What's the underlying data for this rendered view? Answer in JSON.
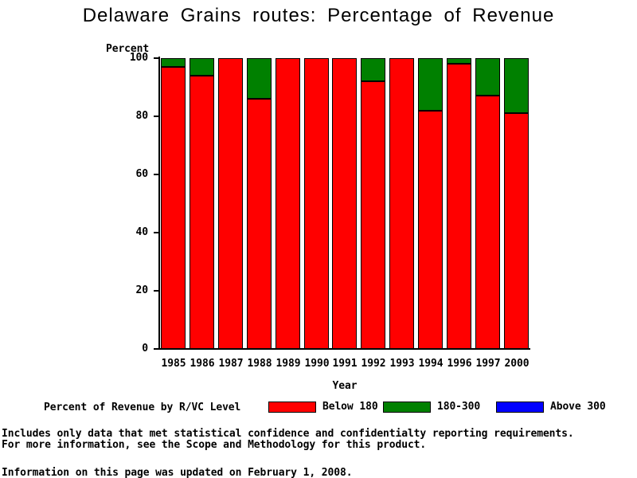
{
  "title": "Delaware Grains routes: Percentage of Revenue",
  "chart_data": {
    "type": "bar",
    "stacked": true,
    "title": "Delaware Grains routes: Percentage of Revenue",
    "xlabel": "Year",
    "ylabel": "Percent",
    "ylim": [
      0,
      100
    ],
    "yticks": [
      0,
      20,
      40,
      60,
      80,
      100
    ],
    "grid": false,
    "legend_position": "bottom",
    "categories": [
      "1985",
      "1986",
      "1987",
      "1988",
      "1989",
      "1990",
      "1991",
      "1992",
      "1993",
      "1994",
      "1996",
      "1997",
      "2000"
    ],
    "series": [
      {
        "name": "Below 180",
        "color": "#ff0000",
        "values": [
          97,
          94,
          100,
          86,
          100,
          100,
          100,
          92,
          100,
          82,
          98,
          87,
          81
        ]
      },
      {
        "name": "180-300",
        "color": "#008000",
        "values": [
          3,
          6,
          0,
          14,
          0,
          0,
          0,
          8,
          0,
          18,
          2,
          13,
          19
        ]
      },
      {
        "name": "Above 300",
        "color": "#0000ff",
        "values": [
          0,
          0,
          0,
          0,
          0,
          0,
          0,
          0,
          0,
          0,
          0,
          0,
          0
        ]
      }
    ]
  },
  "legend": {
    "title": "Percent of Revenue by R/VC Level",
    "items": [
      {
        "label": "Below 180",
        "color": "#ff0000"
      },
      {
        "label": "180-300",
        "color": "#008000"
      },
      {
        "label": "Above 300",
        "color": "#0000ff"
      }
    ]
  },
  "footnotes": {
    "line1": "Includes only data that met statistical confidence and confidentialty reporting requirements.",
    "line2": "For more information, see the Scope and Methodology for this product.",
    "updated": "Information on this page was updated on February 1, 2008."
  }
}
